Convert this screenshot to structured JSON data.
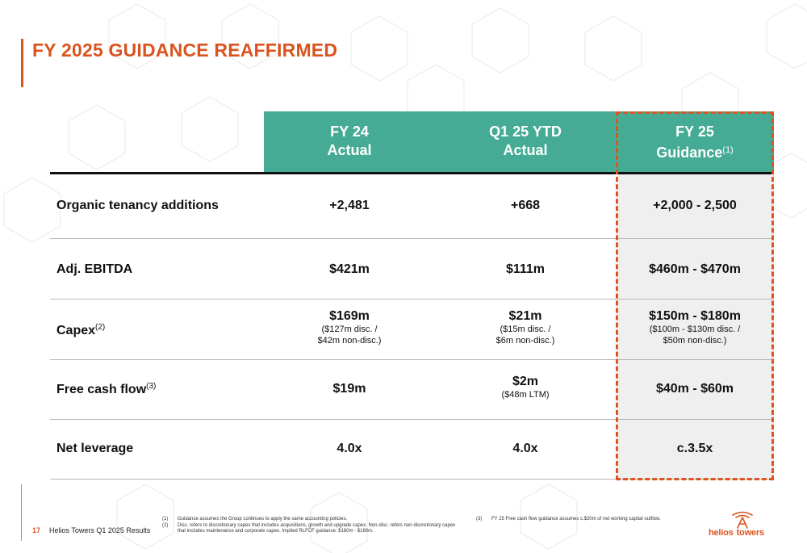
{
  "slide": {
    "title": "FY 2025 GUIDANCE REAFFIRMED",
    "page_number": "17",
    "footer_label": "Helios Towers Q1 2025 Results",
    "brand_color": "#d9541e",
    "header_color": "#46ab94"
  },
  "table": {
    "columns": [
      {
        "line1": "FY 24",
        "line2": "Actual",
        "note": ""
      },
      {
        "line1": "Q1 25 YTD",
        "line2": "Actual",
        "note": ""
      },
      {
        "line1": "FY 25",
        "line2": "Guidance",
        "note": "(1)"
      }
    ],
    "rows": [
      {
        "label": "Organic tenancy additions",
        "note": "",
        "cells": [
          {
            "main": "+2,481",
            "sub1": "",
            "sub2": ""
          },
          {
            "main": "+668",
            "sub1": "",
            "sub2": ""
          },
          {
            "main": "+2,000 - 2,500",
            "sub1": "",
            "sub2": ""
          }
        ]
      },
      {
        "label": "Adj. EBITDA",
        "note": "",
        "cells": [
          {
            "main": "$421m",
            "sub1": "",
            "sub2": ""
          },
          {
            "main": "$111m",
            "sub1": "",
            "sub2": ""
          },
          {
            "main": "$460m - $470m",
            "sub1": "",
            "sub2": ""
          }
        ]
      },
      {
        "label": "Capex",
        "note": "(2)",
        "cells": [
          {
            "main": "$169m",
            "sub1": "($127m disc. /",
            "sub2": "$42m non-disc.)"
          },
          {
            "main": "$21m",
            "sub1": "($15m disc. /",
            "sub2": "$6m non-disc.)"
          },
          {
            "main": "$150m - $180m",
            "sub1": "($100m - $130m disc. /",
            "sub2": "$50m non-disc.)"
          }
        ]
      },
      {
        "label": "Free cash flow",
        "note": "(3)",
        "cells": [
          {
            "main": "$19m",
            "sub1": "",
            "sub2": ""
          },
          {
            "main": "$2m",
            "sub1": "($48m LTM)",
            "sub2": ""
          },
          {
            "main": "$40m - $60m",
            "sub1": "",
            "sub2": ""
          }
        ]
      },
      {
        "label": "Net leverage",
        "note": "",
        "cells": [
          {
            "main": "4.0x",
            "sub1": "",
            "sub2": ""
          },
          {
            "main": "4.0x",
            "sub1": "",
            "sub2": ""
          },
          {
            "main": "c.3.5x",
            "sub1": "",
            "sub2": ""
          }
        ]
      }
    ]
  },
  "footnotes": {
    "left": [
      {
        "num": "(1)",
        "text": "Guidance assumes the Group continues to apply the same accounting policies."
      },
      {
        "num": "(2)",
        "text": "Disc. refers to discretionary capex that includes acquisitions, growth and upgrade capex. Non-disc. refers non-discretionary capex that includes maintenance and corporate capex. Implied RLFCF guidance: $160m - $180m."
      }
    ],
    "right": [
      {
        "num": "(3)",
        "text": "FY 25 Free cash flow guidance assumes c.$20m of net working capital outflow."
      }
    ]
  },
  "logo": {
    "text_left": "helios",
    "text_right": "towers",
    "icon": "tower-icon"
  }
}
